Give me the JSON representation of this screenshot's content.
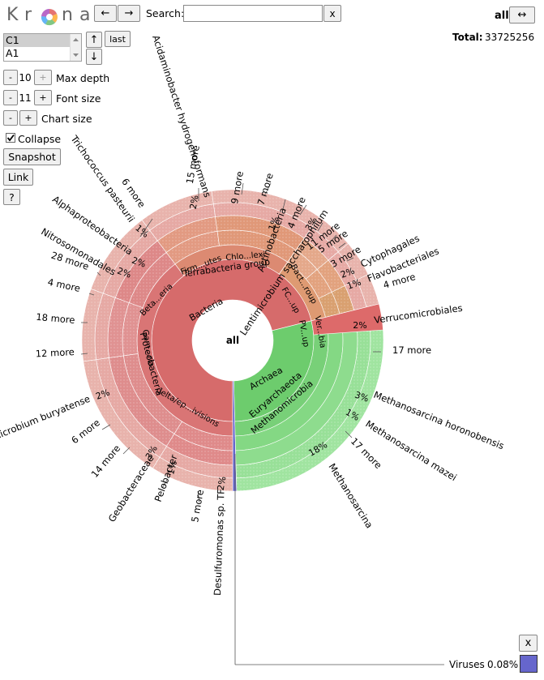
{
  "logo": {
    "letters": [
      "K",
      "r",
      "n",
      "a"
    ]
  },
  "nav": {
    "back": "←",
    "forward": "→"
  },
  "search": {
    "label": "Search:",
    "value": "",
    "clear": "x"
  },
  "focus": {
    "label": "all",
    "swap": "↔"
  },
  "total": {
    "label": "Total:",
    "value": "33725256"
  },
  "datasets": {
    "items": [
      "C1",
      "A1"
    ],
    "up": "↑",
    "down": "↓",
    "last": "last"
  },
  "controls": {
    "max_depth": {
      "minus": "-",
      "value": "10",
      "plus": "+",
      "label": "Max depth"
    },
    "font_size": {
      "minus": "-",
      "value": "11",
      "plus": "+",
      "label": "Font size"
    },
    "chart_size": {
      "minus": "-",
      "plus": "+",
      "label": "Chart size"
    },
    "collapse": {
      "label": "Collapse",
      "checked": true
    },
    "snapshot": "Snapshot",
    "link": "Link",
    "help": "?"
  },
  "chart_center": "all",
  "ring_labels": {
    "bacteria": "Bacteria",
    "proteobacteria": "Proteobacteria",
    "terrabacteria": "Terrabacteria group",
    "firm": "Firm...utes",
    "chlo": "Chlo...lexi",
    "bact": "Bact...roup",
    "fc": "FC...up",
    "pv": "PV...up",
    "ver": "Ver...bia",
    "beta": "Beta...eria",
    "gam": "Gam...ria",
    "delta": "delta/ep...ivisions",
    "archaea": "Archaea",
    "eury": "Euryarchaeota",
    "methanomicrobia": "Methanomicrobia"
  },
  "outer_labels": [
    {
      "id": "acid",
      "text": "Acidaminobacter hydrogenoformans"
    },
    {
      "id": "m15",
      "text": "15 more"
    },
    {
      "id": "m9",
      "text": "9 more"
    },
    {
      "id": "m7",
      "text": "7 more"
    },
    {
      "id": "actino",
      "text": "Actinobacteria"
    },
    {
      "id": "m4a",
      "text": "4 more"
    },
    {
      "id": "lenti",
      "text": "Lentimicrobium saccharophilum"
    },
    {
      "id": "m11",
      "text": "11 more"
    },
    {
      "id": "m5a",
      "text": "5 more"
    },
    {
      "id": "m3",
      "text": "3 more"
    },
    {
      "id": "cyto",
      "text": "Cytophagales"
    },
    {
      "id": "flavo",
      "text": "Flavobacteriales"
    },
    {
      "id": "m4b",
      "text": "4 more"
    },
    {
      "id": "verru",
      "text": "Verrucomicrobiales"
    },
    {
      "id": "m17a",
      "text": "17 more"
    },
    {
      "id": "mhoron",
      "text": "Methanosarcina horonobensis"
    },
    {
      "id": "mmazei",
      "text": "Methanosarcina mazei"
    },
    {
      "id": "m17b",
      "text": "17 more"
    },
    {
      "id": "msarc",
      "text": "Methanosarcina"
    },
    {
      "id": "desulf",
      "text": "Desulfuromonas sp. TF"
    },
    {
      "id": "m5b",
      "text": "5 more"
    },
    {
      "id": "pelo",
      "text": "Pelobacter"
    },
    {
      "id": "geo",
      "text": "Geobacteraceae"
    },
    {
      "id": "m14",
      "text": "14 more"
    },
    {
      "id": "m6b",
      "text": "6 more"
    },
    {
      "id": "buryat",
      "text": "omicrobium buryatense"
    },
    {
      "id": "m12",
      "text": "12 more"
    },
    {
      "id": "m18",
      "text": "18 more"
    },
    {
      "id": "m4c",
      "text": "4 more"
    },
    {
      "id": "m28",
      "text": "28 more"
    },
    {
      "id": "nitroso",
      "text": "Nitrosomonadales"
    },
    {
      "id": "alpha",
      "text": "Alphaproteobacteria"
    },
    {
      "id": "tricho",
      "text": "Trichococcus pasteurii"
    },
    {
      "id": "m6a",
      "text": "6 more"
    }
  ],
  "percent_labels": {
    "p2_firm": "2%",
    "p1_tricho": "1%",
    "p2_alpha": "2%",
    "p2_nitro": "2%",
    "p1_chlo": "1%",
    "p3_lenti": "3%",
    "p2_cyto": "2%",
    "p1_flavo": "1%",
    "p2_verru": "2%",
    "p3_horon": "3%",
    "p1_mazei": "1%",
    "p18_sarc": "18%",
    "p2_desulf": "2%",
    "p1_pelo": "1%",
    "p3_geo": "3%",
    "p2_bury": "2%"
  },
  "viruses": {
    "label": "Viruses",
    "percent": "0.08%",
    "close": "x"
  },
  "colors": {
    "bacteria": "#d66b6b",
    "archaea": "#6dcc6d",
    "viruses": "#6666cc"
  }
}
